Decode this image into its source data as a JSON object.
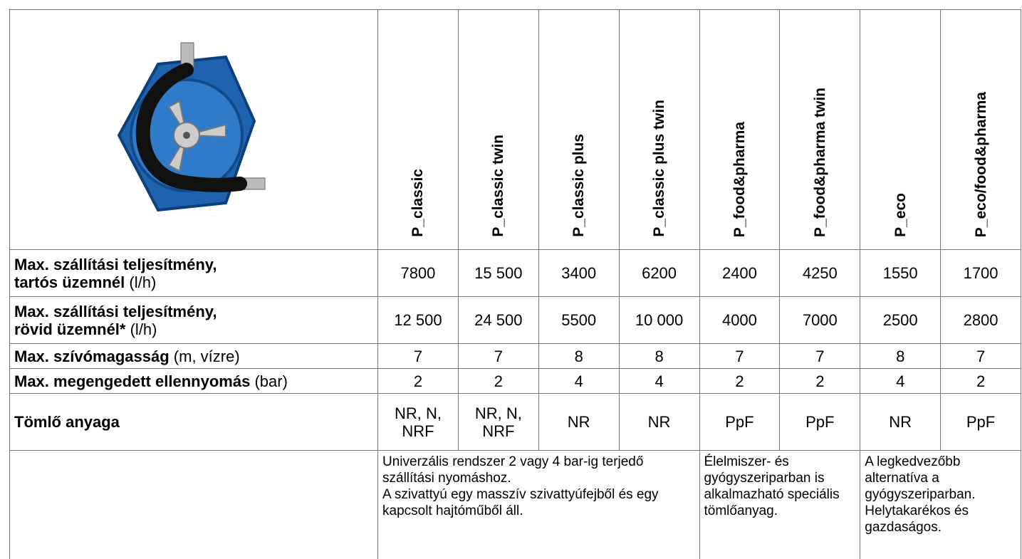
{
  "table": {
    "columns": [
      "P_classic",
      "P_classic twin",
      "P_classic plus",
      "P_classic plus twin",
      "P_food&pharma",
      "P_food&pharma twin",
      "P_eco",
      "P_eco/food&pharma"
    ],
    "rows": [
      {
        "label": [
          "Max. szállítási teljesítmény,",
          "tartós üzemnél"
        ],
        "unit": "(l/h)",
        "values": [
          "7800",
          "15 500",
          "3400",
          "6200",
          "2400",
          "4250",
          "1550",
          "1700"
        ]
      },
      {
        "label": [
          "Max. szállítási teljesítmény,",
          "rövid üzemnél*"
        ],
        "unit": "(l/h)",
        "values": [
          "12 500",
          "24 500",
          "5500",
          "10 000",
          "4000",
          "7000",
          "2500",
          "2800"
        ]
      },
      {
        "label": [
          "Max. szívómagasság"
        ],
        "unit": "(m, vízre)",
        "values": [
          "7",
          "7",
          "8",
          "8",
          "7",
          "7",
          "8",
          "7"
        ]
      },
      {
        "label": [
          "Max. megengedett ellennyomás"
        ],
        "unit": "(bar)",
        "values": [
          "2",
          "2",
          "4",
          "4",
          "2",
          "2",
          "4",
          "2"
        ]
      },
      {
        "label": [
          "Tömlő anyaga"
        ],
        "values": [
          "NR, N, NRF",
          "NR, N, NRF",
          "NR",
          "NR",
          "PpF",
          "PpF",
          "NR",
          "PpF"
        ]
      }
    ],
    "descriptions": [
      {
        "span": 4,
        "lines": [
          "Univerzális rendszer 2 vagy 4 bar-ig terjedő szállítási nyomáshoz.",
          "A szivattyú egy masszív szivattyúfejből és egy kapcsolt hajtóműből áll."
        ]
      },
      {
        "span": 2,
        "lines": [
          "Élelmiszer- és gyógyszeriparban is alkalmazható speciális tömlőanyag."
        ]
      },
      {
        "span": 2,
        "lines": [
          "A legkedvezőbb alternatíva a gyógyszeriparban.",
          "Helytakarékos és gazdaságos."
        ]
      }
    ]
  }
}
